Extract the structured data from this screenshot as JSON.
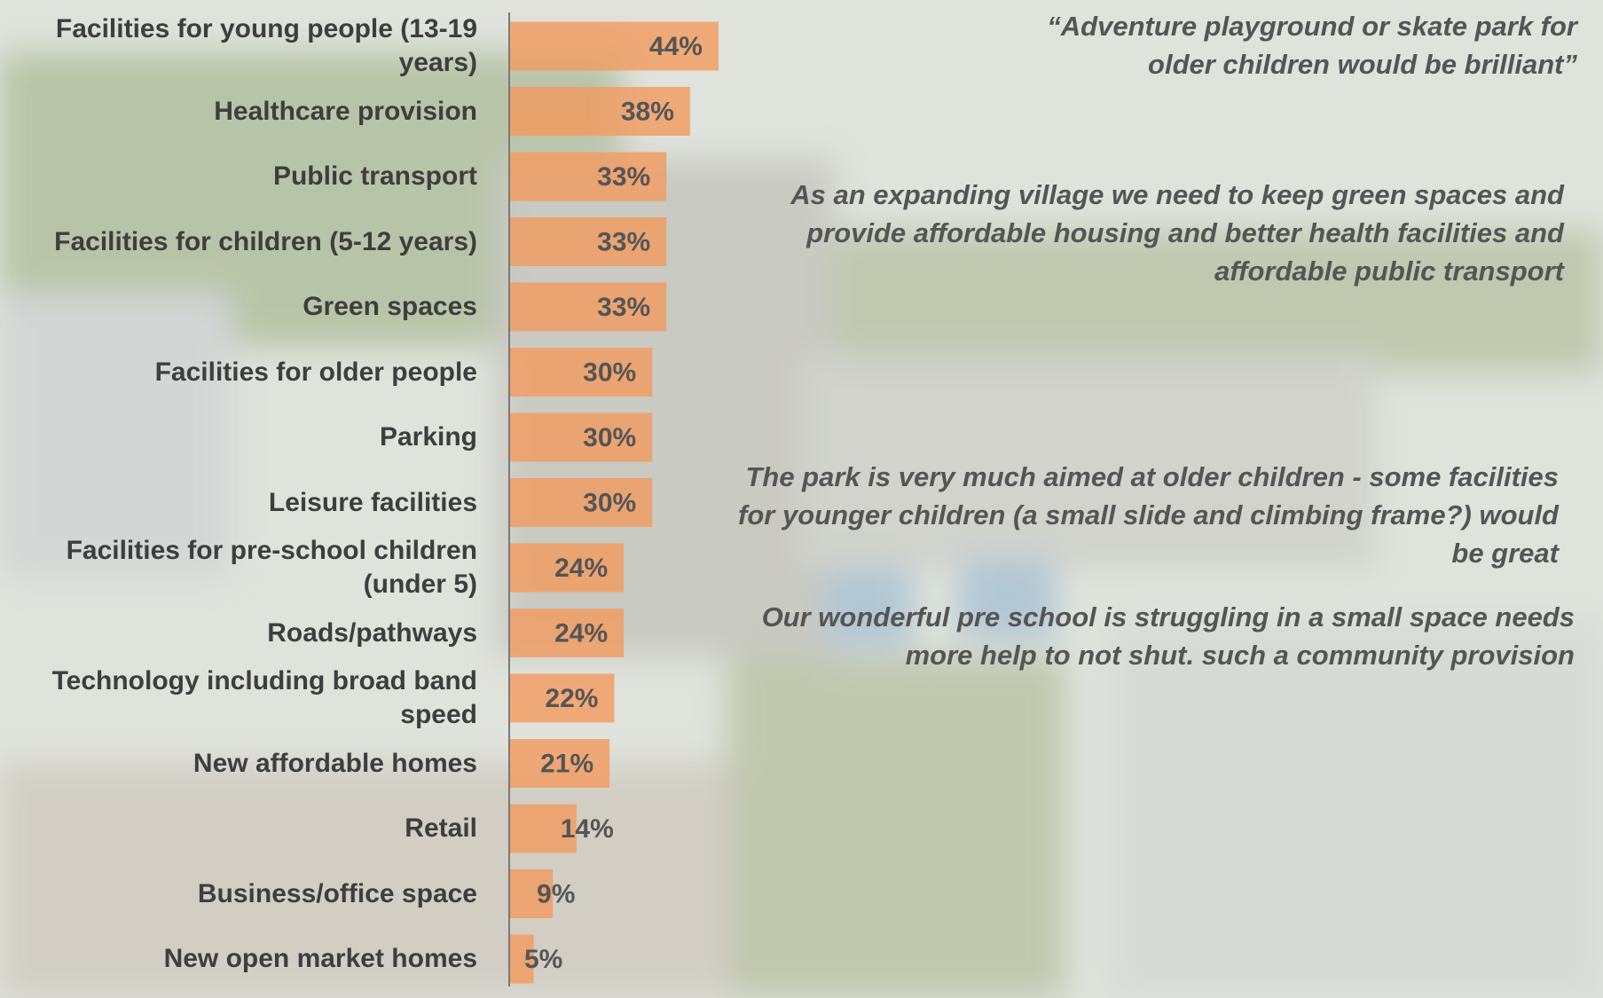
{
  "chart_data": {
    "type": "bar",
    "orientation": "horizontal",
    "color": "#f29a5e",
    "categories": [
      "Facilities for young people (13-19 years)",
      "Healthcare provision",
      "Public transport",
      "Facilities for children (5-12 years)",
      "Green spaces",
      "Facilities for older people",
      "Parking",
      "Leisure facilities",
      "Facilities for pre-school children (under 5)",
      "Roads/pathways",
      "Technology including broad band speed",
      "New affordable homes",
      "Retail",
      "Business/office space",
      "New open market homes"
    ],
    "values": [
      44,
      38,
      33,
      33,
      33,
      30,
      30,
      30,
      24,
      24,
      22,
      21,
      14,
      9,
      5
    ],
    "value_labels": [
      "44%",
      "38%",
      "33%",
      "33%",
      "33%",
      "30%",
      "30%",
      "30%",
      "24%",
      "24%",
      "22%",
      "21%",
      "14%",
      "9%",
      "5%"
    ],
    "annotations": [
      "“Adventure playground or skate park for older children would be brilliant”",
      "As an expanding village we need to keep green spaces and provide affordable housing and better health facilities and affordable public transport",
      "The park is very much aimed at older children - some facilities for younger children (a small slide and climbing frame?) would be great",
      "Our wonderful pre school is struggling in a small space needs more help to not shut. such a community provision"
    ]
  }
}
